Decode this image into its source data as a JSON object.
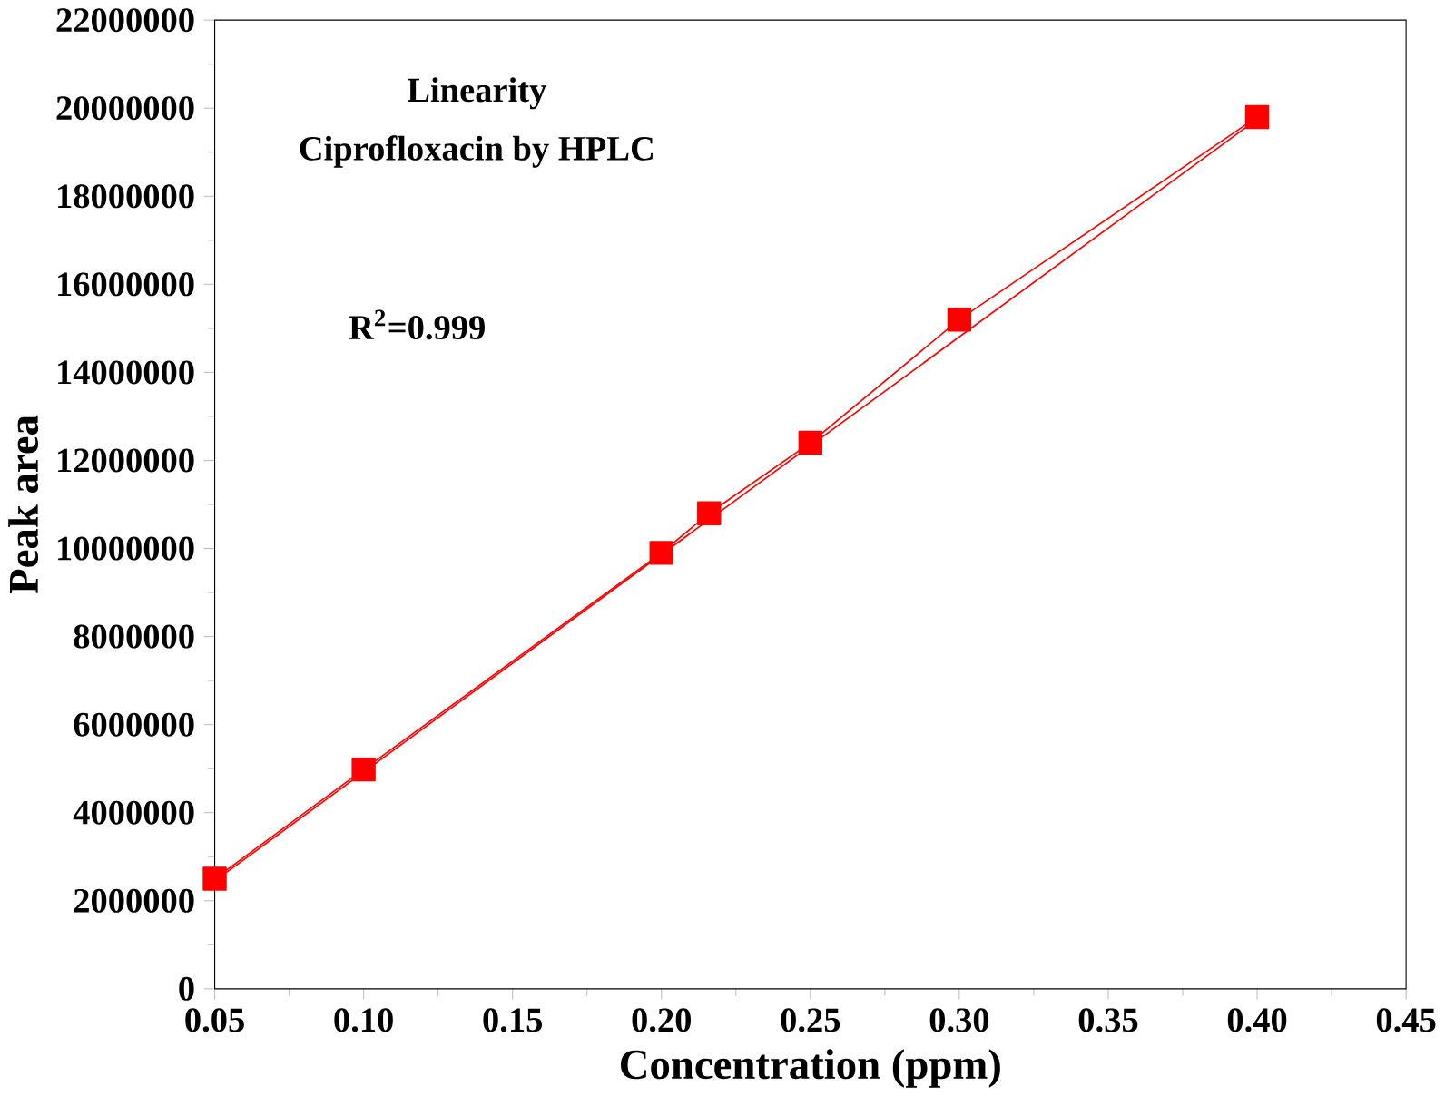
{
  "chart_data": {
    "type": "line",
    "xlabel": "Concentration (ppm)",
    "ylabel": "Peak area",
    "annotations": [
      "Linearity",
      "Ciprofloxacin by HPLC",
      "R$^{2}$=0.999"
    ],
    "xlim": [
      0.05,
      0.45
    ],
    "xticks": [
      {
        "value": 0.05,
        "label": "0.05"
      },
      {
        "value": 0.1,
        "label": "0.10"
      },
      {
        "value": 0.15,
        "label": "0.15"
      },
      {
        "value": 0.2,
        "label": "0.20"
      },
      {
        "value": 0.25,
        "label": "0.25"
      },
      {
        "value": 0.3,
        "label": "0.30"
      },
      {
        "value": 0.35,
        "label": "0.35"
      },
      {
        "value": 0.4,
        "label": "0.40"
      },
      {
        "value": 0.45,
        "label": "0.45"
      }
    ],
    "ylim": [
      0,
      22000000
    ],
    "yticks": [
      0,
      2000000,
      4000000,
      6000000,
      8000000,
      10000000,
      12000000,
      14000000,
      16000000,
      18000000,
      20000000,
      22000000
    ],
    "grid": false,
    "series": [
      {
        "marker": "square",
        "color": "#ff0000",
        "x": [
          0.05,
          0.1,
          0.2,
          0.216,
          0.25,
          0.3,
          0.4
        ],
        "values": [
          2500000,
          4980000,
          9900000,
          10800000,
          12400000,
          15200000,
          19800000
        ]
      },
      {
        "marker": "none",
        "color": "#ff0000",
        "x": [
          0.05,
          0.4
        ],
        "values": [
          2450000,
          19750000
        ]
      }
    ]
  }
}
